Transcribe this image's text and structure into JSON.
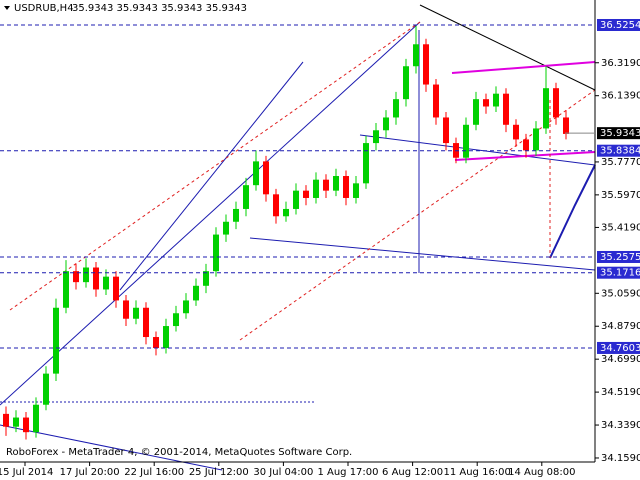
{
  "chart_data": {
    "type": "candlestick",
    "title": "USDRUB,H4",
    "quote": "35.9343 35.9343 35.9343 35.9343",
    "footer": "RoboForex - MetaTrader 4, © 2001-2014, MetaQuotes Software Corp.",
    "colors": {
      "up": "#00d000",
      "down": "#ff0000",
      "level": "#1c1cb0",
      "level_label": "#2a2ad0",
      "current_label": "#000000"
    },
    "ylim": [
      34.137,
      36.662
    ],
    "yticks": [
      {
        "value": 36.319,
        "label": "36.3190"
      },
      {
        "value": 36.139,
        "label": "36.1390"
      },
      {
        "value": 35.777,
        "label": "35.7770"
      },
      {
        "value": 35.597,
        "label": "35.5970"
      },
      {
        "value": 35.419,
        "label": "35.4190"
      },
      {
        "value": 35.059,
        "label": "35.0590"
      },
      {
        "value": 34.879,
        "label": "34.8790"
      },
      {
        "value": 34.699,
        "label": "34.6990"
      },
      {
        "value": 34.519,
        "label": "34.5190"
      },
      {
        "value": 34.339,
        "label": "34.3390"
      },
      {
        "value": 34.159,
        "label": "34.1590"
      }
    ],
    "levels": [
      36.5254,
      35.8384,
      35.2575,
      35.1716,
      34.7603
    ],
    "current": 35.9343,
    "x_labels": [
      "15 Jul 2014",
      "17 Jul 20:00",
      "22 Jul 16:00",
      "25 Jul 12:00",
      "30 Jul 04:00",
      "1 Aug 17:00",
      "6 Aug 12:00",
      "11 Aug 16:00",
      "14 Aug 08:00"
    ],
    "candles": [
      [
        34.4,
        34.44,
        34.28,
        34.33
      ],
      [
        34.33,
        34.42,
        34.3,
        34.38
      ],
      [
        34.38,
        34.41,
        34.26,
        34.3
      ],
      [
        34.3,
        34.49,
        34.27,
        34.45
      ],
      [
        34.45,
        34.66,
        34.42,
        34.62
      ],
      [
        34.62,
        35.03,
        34.58,
        34.98
      ],
      [
        34.98,
        35.24,
        34.95,
        35.18
      ],
      [
        35.18,
        35.22,
        35.08,
        35.12
      ],
      [
        35.12,
        35.25,
        35.09,
        35.2
      ],
      [
        35.2,
        35.23,
        35.04,
        35.08
      ],
      [
        35.08,
        35.19,
        35.05,
        35.15
      ],
      [
        35.15,
        35.18,
        34.98,
        35.02
      ],
      [
        35.02,
        35.05,
        34.88,
        34.92
      ],
      [
        34.92,
        35.02,
        34.89,
        34.98
      ],
      [
        34.98,
        35.01,
        34.78,
        34.82
      ],
      [
        34.82,
        34.85,
        34.72,
        34.76
      ],
      [
        34.76,
        34.92,
        34.73,
        34.88
      ],
      [
        34.88,
        34.99,
        34.85,
        34.95
      ],
      [
        34.95,
        35.06,
        34.92,
        35.02
      ],
      [
        35.02,
        35.14,
        34.99,
        35.1
      ],
      [
        35.1,
        35.22,
        35.06,
        35.18
      ],
      [
        35.18,
        35.42,
        35.15,
        35.38
      ],
      [
        35.38,
        35.49,
        35.34,
        35.45
      ],
      [
        35.45,
        35.56,
        35.41,
        35.52
      ],
      [
        35.52,
        35.69,
        35.48,
        35.65
      ],
      [
        35.65,
        35.84,
        35.62,
        35.78
      ],
      [
        35.78,
        35.81,
        35.56,
        35.6
      ],
      [
        35.6,
        35.63,
        35.44,
        35.48
      ],
      [
        35.48,
        35.56,
        35.45,
        35.52
      ],
      [
        35.52,
        35.66,
        35.49,
        35.62
      ],
      [
        35.62,
        35.65,
        35.54,
        35.58
      ],
      [
        35.58,
        35.72,
        35.55,
        35.68
      ],
      [
        35.68,
        35.71,
        35.58,
        35.62
      ],
      [
        35.62,
        35.74,
        35.59,
        35.7
      ],
      [
        35.7,
        35.73,
        35.54,
        35.58
      ],
      [
        35.58,
        35.7,
        35.55,
        35.66
      ],
      [
        35.66,
        35.92,
        35.63,
        35.88
      ],
      [
        35.88,
        35.99,
        35.84,
        35.95
      ],
      [
        35.95,
        36.06,
        35.91,
        36.02
      ],
      [
        36.02,
        36.16,
        35.98,
        36.12
      ],
      [
        36.12,
        36.34,
        36.08,
        36.3
      ],
      [
        36.3,
        36.52,
        36.26,
        36.42
      ],
      [
        36.42,
        36.45,
        36.16,
        36.2
      ],
      [
        36.2,
        36.23,
        35.98,
        36.02
      ],
      [
        36.02,
        36.05,
        35.84,
        35.88
      ],
      [
        35.88,
        35.91,
        35.77,
        35.8
      ],
      [
        35.8,
        36.02,
        35.77,
        35.98
      ],
      [
        35.98,
        36.16,
        35.95,
        36.12
      ],
      [
        36.12,
        36.15,
        36.04,
        36.08
      ],
      [
        36.08,
        36.19,
        36.05,
        36.15
      ],
      [
        36.15,
        36.18,
        35.94,
        35.98
      ],
      [
        35.98,
        36.01,
        35.86,
        35.9
      ],
      [
        35.9,
        35.93,
        35.8,
        35.84
      ],
      [
        35.84,
        36.0,
        35.81,
        35.96
      ],
      [
        35.96,
        36.3,
        35.93,
        36.18
      ],
      [
        36.18,
        36.21,
        35.98,
        36.02
      ],
      [
        36.02,
        36.06,
        35.9,
        35.93
      ]
    ]
  }
}
